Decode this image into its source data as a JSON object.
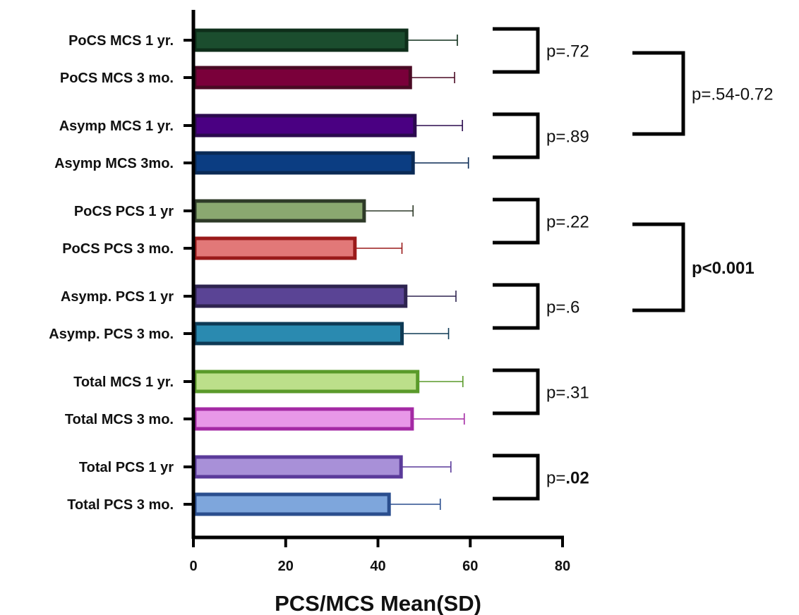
{
  "chart_data": {
    "type": "bar",
    "orientation": "horizontal",
    "xlabel": "PCS/MCS Mean(SD)",
    "xlim": [
      0,
      80
    ],
    "xticks": [
      0,
      20,
      40,
      60,
      80
    ],
    "grid": false,
    "bars": [
      {
        "label": "PoCS MCS 1 yr.",
        "value": 46.2,
        "sd": 11.0,
        "fill": "#1b4d2e",
        "stroke": "#0e2e1a"
      },
      {
        "label": "PoCS MCS 3 mo.",
        "value": 47.0,
        "sd": 9.6,
        "fill": "#7a003a",
        "stroke": "#4a0a24"
      },
      {
        "label": "Asymp MCS 1 yr.",
        "value": 48.0,
        "sd": 10.3,
        "fill": "#4a0082",
        "stroke": "#2b0a4e"
      },
      {
        "label": "Asymp MCS 3mo.",
        "value": 47.6,
        "sd": 12.0,
        "fill": "#0b3d82",
        "stroke": "#0a2a55"
      },
      {
        "label": "PoCS PCS 1 yr",
        "value": 37.0,
        "sd": 10.6,
        "fill": "#8aa870",
        "stroke": "#2e3a28"
      },
      {
        "label": "PoCS PCS 3 mo.",
        "value": 35.0,
        "sd": 10.2,
        "fill": "#e27878",
        "stroke": "#9a1a1a"
      },
      {
        "label": "Asymp. PCS 1 yr",
        "value": 46.0,
        "sd": 10.9,
        "fill": "#5a4495",
        "stroke": "#2e2450"
      },
      {
        "label": "Asymp. PCS 3 mo.",
        "value": 45.2,
        "sd": 10.1,
        "fill": "#2a8ab0",
        "stroke": "#0e3a55"
      },
      {
        "label": "Total MCS 1 yr.",
        "value": 48.6,
        "sd": 9.8,
        "fill": "#bcdf8a",
        "stroke": "#5a9a2a"
      },
      {
        "label": "Total MCS 3 mo.",
        "value": 47.4,
        "sd": 11.3,
        "fill": "#e898e8",
        "stroke": "#a42aa4"
      },
      {
        "label": "Total PCS 1 yr",
        "value": 45.0,
        "sd": 10.8,
        "fill": "#a890d8",
        "stroke": "#5a3a9a"
      },
      {
        "label": "Total PCS 3 mo.",
        "value": 42.4,
        "sd": 11.1,
        "fill": "#7ea6dc",
        "stroke": "#2a4e8e"
      }
    ],
    "comparisons": [
      {
        "label": "p=.72",
        "bold": false,
        "from": 0,
        "to": 1
      },
      {
        "label": "p=.89",
        "bold": false,
        "from": 2,
        "to": 3
      },
      {
        "label": "p=.22",
        "bold": false,
        "from": 4,
        "to": 5
      },
      {
        "label": "p=.6",
        "bold": false,
        "from": 6,
        "to": 7
      },
      {
        "label": "p=.31",
        "bold": false,
        "from": 8,
        "to": 9
      },
      {
        "label_prefix": "p=",
        "label_bold": ".02",
        "from": 10,
        "to": 11
      }
    ],
    "group_comparisons": [
      {
        "label": "p=.54-0.72",
        "bold": false,
        "groups": [
          0,
          1
        ]
      },
      {
        "label": "p<0.001",
        "bold": true,
        "groups": [
          2,
          3
        ]
      }
    ]
  }
}
